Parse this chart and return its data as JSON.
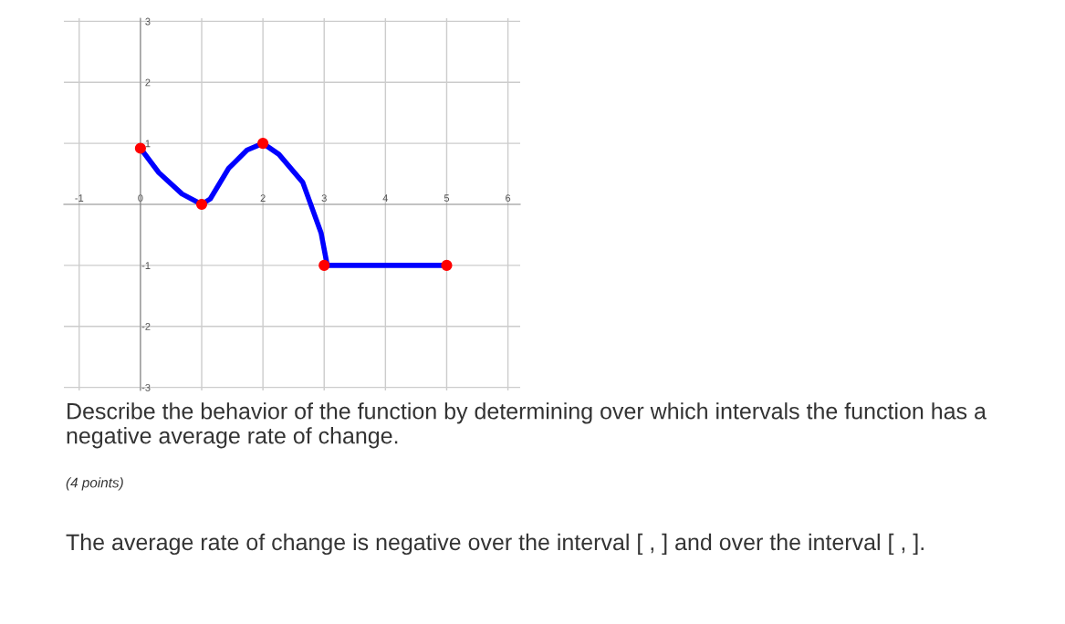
{
  "chart_data": {
    "type": "line",
    "x": [
      0,
      0.3,
      0.68,
      1,
      1.14,
      1.44,
      1.74,
      2,
      2.26,
      2.65,
      2.95,
      3.05,
      4,
      5
    ],
    "series": [
      {
        "color": "#0000ff",
        "values": [
          0.92,
          0.52,
          0.17,
          0,
          0.09,
          0.59,
          0.89,
          1,
          0.82,
          0.36,
          -0.47,
          -1,
          -1,
          -1
        ]
      },
      {
        "type": "scatter",
        "marker": "circle",
        "color": "#ff0000",
        "x": [
          0,
          1,
          2,
          3,
          5
        ],
        "values": [
          0.92,
          0,
          1,
          -1,
          -1
        ]
      }
    ],
    "xlim": [
      -1.25,
      6.2
    ],
    "ylim": [
      -3.05,
      3.05
    ],
    "xticks": [
      -1,
      0,
      {
        "value": 1,
        "label": null
      },
      2,
      3,
      4,
      5,
      6
    ],
    "yticks": [
      -3,
      -2,
      -1,
      1,
      2,
      3
    ],
    "grid": true,
    "legend": false,
    "annotations": [
      "Describe the behavior of the function by determining over which intervals the function has a negative average rate of change.",
      "(4 points)",
      "The average rate of change is negative over the interval [ , ] and over the interval [ , ]."
    ]
  }
}
